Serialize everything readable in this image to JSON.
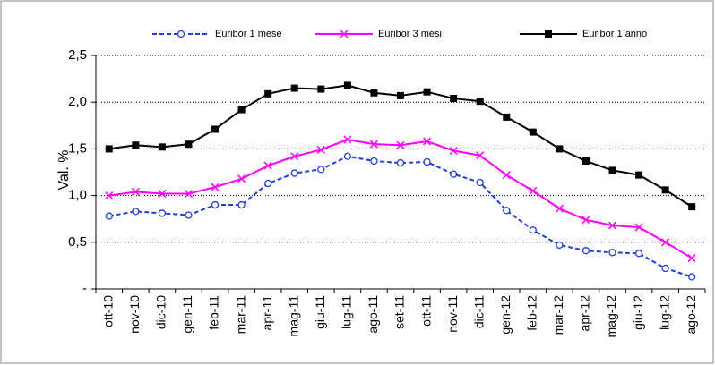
{
  "chart_data": {
    "type": "line",
    "y_label": "Val. %",
    "categories": [
      "ott-10",
      "nov-10",
      "dic-10",
      "gen-11",
      "feb-11",
      "mar-11",
      "apr-11",
      "mag-11",
      "giu-11",
      "lug-11",
      "ago-11",
      "set-11",
      "ott-11",
      "nov-11",
      "dic-11",
      "gen-12",
      "feb-12",
      "mar-12",
      "apr-12",
      "mag-12",
      "giu-12",
      "lug-12",
      "ago-12"
    ],
    "series": [
      {
        "name": "Euribor 1 mese",
        "color": "#1f3fd6",
        "marker": "circle",
        "dashed": true,
        "values": [
          0.78,
          0.83,
          0.81,
          0.79,
          0.9,
          0.9,
          1.13,
          1.24,
          1.28,
          1.42,
          1.37,
          1.35,
          1.36,
          1.23,
          1.14,
          0.84,
          0.63,
          0.47,
          0.41,
          0.39,
          0.38,
          0.22,
          0.13
        ]
      },
      {
        "name": "Euribor 3 mesi",
        "color": "#ff00ff",
        "marker": "cross",
        "dashed": false,
        "values": [
          1.0,
          1.04,
          1.02,
          1.02,
          1.09,
          1.18,
          1.32,
          1.42,
          1.49,
          1.6,
          1.55,
          1.54,
          1.58,
          1.48,
          1.43,
          1.22,
          1.05,
          0.86,
          0.74,
          0.68,
          0.66,
          0.5,
          0.33
        ]
      },
      {
        "name": "Euribor 1 anno",
        "color": "#000000",
        "marker": "square",
        "dashed": false,
        "values": [
          1.5,
          1.54,
          1.52,
          1.55,
          1.71,
          1.92,
          2.09,
          2.15,
          2.14,
          2.18,
          2.1,
          2.07,
          2.11,
          2.04,
          2.01,
          1.84,
          1.68,
          1.5,
          1.37,
          1.27,
          1.22,
          1.06,
          0.88
        ]
      }
    ],
    "ylim": [
      0,
      2.5
    ],
    "yticks": [
      {
        "value": 0,
        "label": "-"
      },
      {
        "value": 0.5,
        "label": "0,5"
      },
      {
        "value": 1,
        "label": "1,0"
      },
      {
        "value": 1.5,
        "label": "1,5"
      },
      {
        "value": 2,
        "label": "2,0"
      },
      {
        "value": 2.5,
        "label": "2,5"
      }
    ],
    "grid": true
  }
}
